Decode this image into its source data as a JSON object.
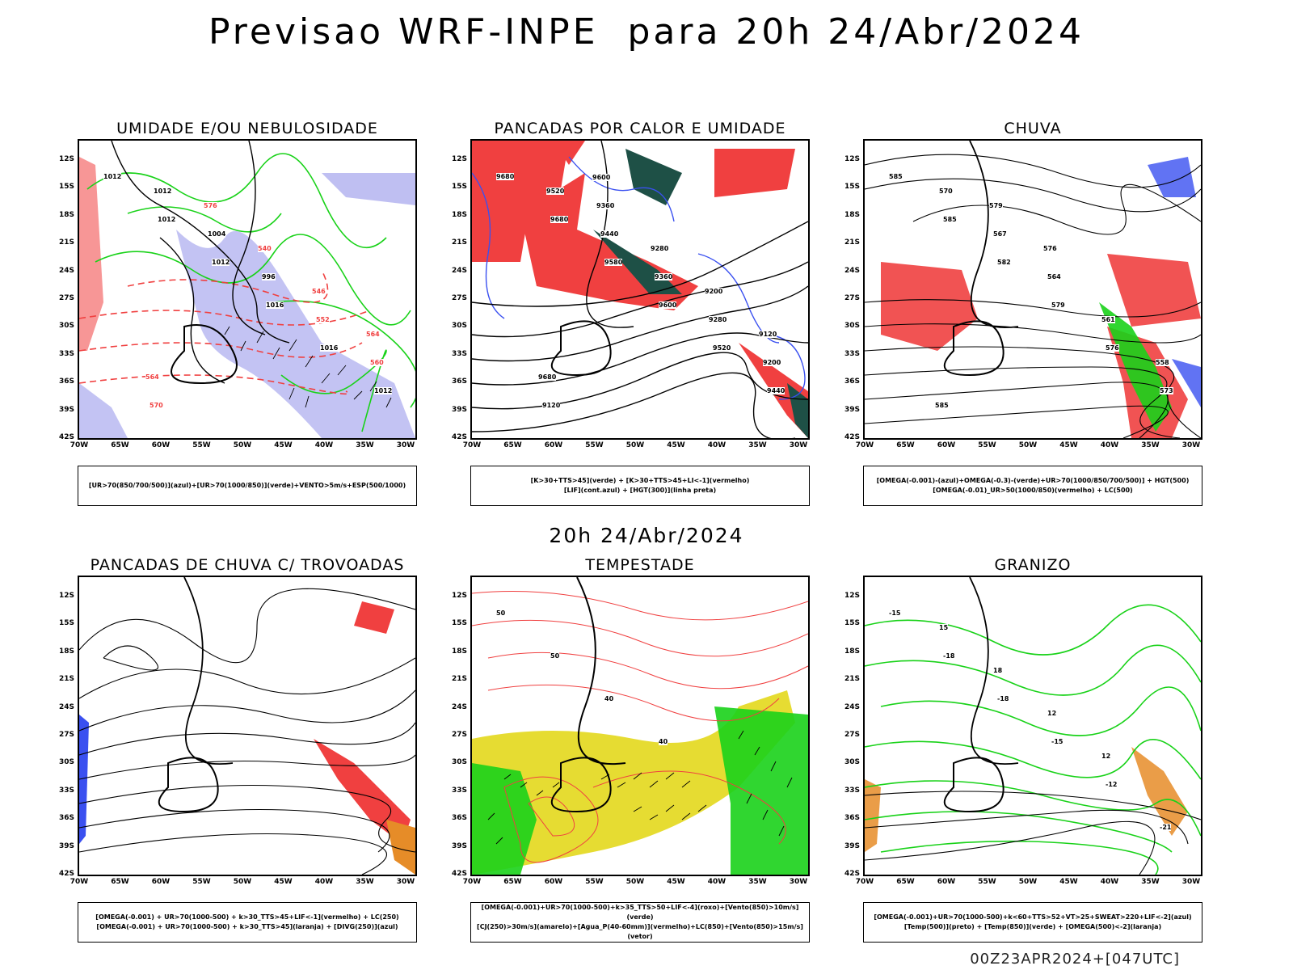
{
  "title": "Previsao WRF-INPE  para 20h 24/Abr/2024",
  "mid_date": "20h 24/Abr/2024",
  "footer": "00Z23APR2024+[047UTC]",
  "lat_labels": [
    "12S",
    "15S",
    "18S",
    "21S",
    "24S",
    "27S",
    "30S",
    "33S",
    "36S",
    "39S",
    "42S"
  ],
  "lon_labels": [
    "70W",
    "65W",
    "60W",
    "55W",
    "50W",
    "45W",
    "40W",
    "35W",
    "30W"
  ],
  "colors": {
    "red": "#f04040",
    "green": "#19d219",
    "blue": "#3a50f0",
    "lavender": "#b4b4f0",
    "yellow": "#e6dc32",
    "darkgreen": "#1e5046",
    "orange": "#e68c28"
  },
  "panels": [
    {
      "title": "UMIDADE E/OU NEBULOSIDADE",
      "legend": [
        "[UR>70(850/700/500)](azul)+[UR>70(1000/850)](verde)+VENTO>5m/s+ESP(500/1000)"
      ],
      "labels": [
        "1012",
        "1012",
        "1012",
        "1016",
        "1016",
        "1012",
        "1012",
        "1004",
        "996",
        "552",
        "560",
        "570",
        "576",
        "540",
        "546",
        "564",
        "564"
      ]
    },
    {
      "title": "PANCADAS POR CALOR E UMIDADE",
      "legend": [
        "[K>30+TTS>45](verde) + [K>30+TTS>45+LI<-1](vermelho)",
        "[LIF](cont.azul) + [HGT(300)](linha preta)"
      ],
      "labels": [
        "9680",
        "9680",
        "9580",
        "9600",
        "9520",
        "9440",
        "9520",
        "9440",
        "9360",
        "9280",
        "9200",
        "9120",
        "9360",
        "9280",
        "9200",
        "9120",
        "9680",
        "9600"
      ]
    },
    {
      "title": "CHUVA",
      "legend": [
        "[OMEGA(-0.001)-(azul)+OMEGA(-0.3)-(verde)+UR>70(1000/850/700/500)] + HGT(500)",
        "[OMEGA(-0.01)_UR>50(1000/850)(vermelho) + LC(500)"
      ],
      "labels": [
        "585",
        "585",
        "582",
        "579",
        "576",
        "573",
        "570",
        "567",
        "564",
        "561",
        "558",
        "585",
        "579",
        "576"
      ]
    },
    {
      "title": "PANCADAS DE CHUVA C/ TROVOADAS",
      "legend": [
        "[OMEGA(-0.001) + UR>70(1000-500) + k>30_TTS>45+LIF<-1](vermelho) + LC(250)",
        "[OMEGA(-0.001) + UR>70(1000-500) + k>30_TTS>45](laranja) + [DIVG(250)](azul)"
      ],
      "labels": []
    },
    {
      "title": "TEMPESTADE",
      "legend": [
        "[OMEGA(-0.001)+UR>70(1000-500)+k>35_TTS>50+LIF<-4](roxo)+[Vento(850)>10m/s](verde)",
        "[CJ(250)>30m/s](amarelo)+[Agua_P(40-60mm)](vermelho)+LC(850)+[Vento(850)>15m/s](vetor)"
      ],
      "labels": [
        "50",
        "50",
        "40",
        "40"
      ]
    },
    {
      "title": "GRANIZO",
      "legend": [
        "[OMEGA(-0.001)+UR>70(1000-500)+k<60+TTS>52+VT>25+SWEAT>220+LIF<-2](azul)",
        "[Temp(500)](preto) + [Temp(850)](verde) + [OMEGA(500)<-2](laranja)"
      ],
      "labels": [
        "-15",
        "-18",
        "-18",
        "-15",
        "-12",
        "-21",
        "15",
        "18",
        "12",
        "12"
      ]
    }
  ]
}
